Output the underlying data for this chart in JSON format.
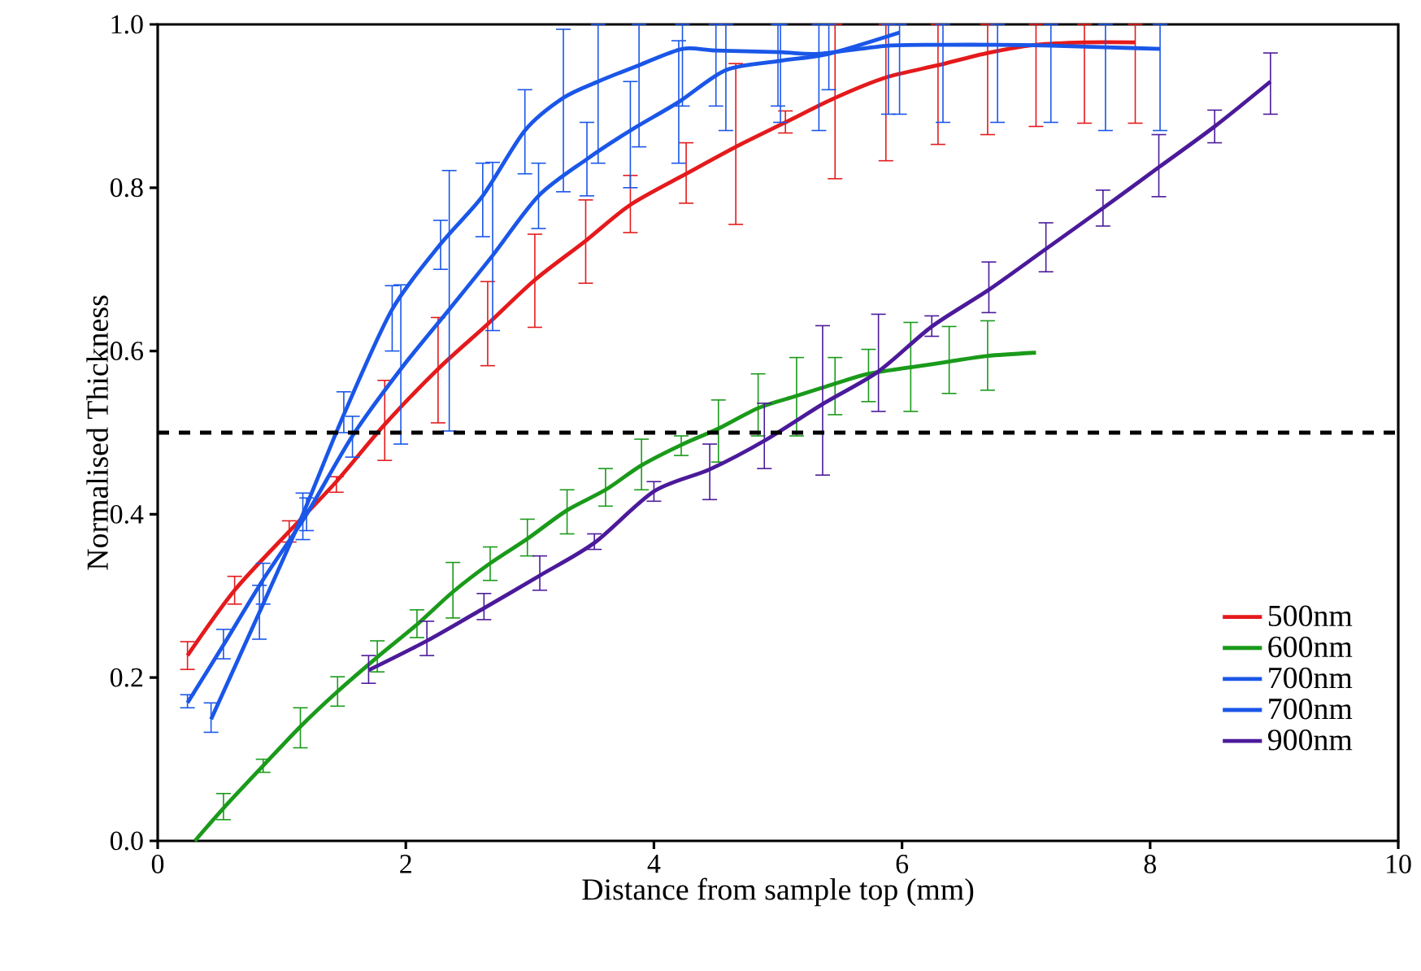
{
  "chart_data": {
    "type": "line",
    "xlabel": "Distance from sample top (mm)",
    "ylabel": "Normalised Thickness",
    "xlim": [
      0,
      10
    ],
    "ylim": [
      0,
      1
    ],
    "xticks": [
      0,
      2,
      4,
      6,
      8,
      10
    ],
    "yticks": [
      {
        "value": 0,
        "label": "0.0"
      },
      {
        "value": 0.2,
        "label": "0.2"
      },
      {
        "value": 0.4,
        "label": "0.4"
      },
      {
        "value": 0.6,
        "label": "0.6"
      },
      {
        "value": 0.8,
        "label": "0.8"
      },
      {
        "value": 1,
        "label": "1.0"
      }
    ],
    "legend": "bottom right",
    "marker": "none",
    "line_style": "solid",
    "ref_lines": [
      {
        "axis": "y",
        "value": 0.5,
        "color": "#000000",
        "line_style": "dashed"
      }
    ],
    "series": [
      {
        "name": "500nm",
        "color": "#e41a1c",
        "x": [
          0.24,
          0.62,
          1.06,
          1.44,
          1.83,
          2.26,
          2.66,
          3.04,
          3.45,
          3.81,
          4.26,
          4.66,
          5.06,
          5.46,
          5.87,
          6.29,
          6.69,
          7.08,
          7.47,
          7.88
        ],
        "values": [
          0.227,
          0.307,
          0.379,
          0.44,
          0.51,
          0.578,
          0.633,
          0.687,
          0.735,
          0.779,
          0.817,
          0.85,
          0.88,
          0.91,
          0.935,
          0.95,
          0.965,
          0.975,
          0.978,
          0.978
        ],
        "errors": [
          [
            0.21,
            0.244
          ],
          [
            0.29,
            0.324
          ],
          [
            0.366,
            0.392
          ],
          [
            0.427,
            0.446
          ],
          [
            0.466,
            0.564
          ],
          [
            0.512,
            0.641
          ],
          [
            0.582,
            0.685
          ],
          [
            0.629,
            0.743
          ],
          [
            0.683,
            0.785
          ],
          [
            0.745,
            0.815
          ],
          [
            0.781,
            0.855
          ],
          [
            0.755,
            0.952
          ],
          [
            0.867,
            0.894
          ],
          [
            0.811,
            1.0
          ],
          [
            0.833,
            1.0
          ],
          [
            0.853,
            1.0
          ],
          [
            0.865,
            1.0
          ],
          [
            0.875,
            1.0
          ],
          [
            0.879,
            1.0
          ],
          [
            0.879,
            1.0
          ]
        ]
      },
      {
        "name": "600nm",
        "color": "#1a9a1a",
        "x": [
          0.3,
          0.53,
          0.85,
          1.15,
          1.45,
          1.77,
          2.09,
          2.38,
          2.68,
          2.98,
          3.3,
          3.61,
          3.9,
          4.22,
          4.52,
          4.84,
          5.15,
          5.46,
          5.73,
          6.07,
          6.38,
          6.69,
          7.08
        ],
        "values": [
          0.0,
          0.04,
          0.092,
          0.14,
          0.183,
          0.225,
          0.265,
          0.305,
          0.34,
          0.37,
          0.405,
          0.43,
          0.46,
          0.485,
          0.505,
          0.53,
          0.545,
          0.56,
          0.572,
          0.58,
          0.587,
          0.594,
          0.598
        ],
        "errors": [
          null,
          [
            0.026,
            0.058
          ],
          [
            0.084,
            0.1
          ],
          [
            0.114,
            0.163
          ],
          [
            0.165,
            0.201
          ],
          [
            0.207,
            0.245
          ],
          [
            0.249,
            0.283
          ],
          [
            0.273,
            0.341
          ],
          [
            0.319,
            0.36
          ],
          [
            0.349,
            0.394
          ],
          [
            0.376,
            0.43
          ],
          [
            0.41,
            0.456
          ],
          [
            0.43,
            0.492
          ],
          [
            0.472,
            0.496
          ],
          [
            0.464,
            0.54
          ],
          [
            0.496,
            0.572
          ],
          [
            0.496,
            0.592
          ],
          [
            0.522,
            0.592
          ],
          [
            0.538,
            0.602
          ],
          [
            0.526,
            0.635
          ],
          [
            0.548,
            0.63
          ],
          [
            0.552,
            0.637
          ],
          null
        ]
      },
      {
        "name": "700nm",
        "color": "#1a56e8",
        "x": [
          0.24,
          0.53,
          0.85,
          1.2,
          1.57,
          1.96,
          2.35,
          2.7,
          3.07,
          3.46,
          3.81,
          4.2,
          4.58,
          5.0,
          5.41,
          5.98
        ],
        "values": [
          0.169,
          0.24,
          0.32,
          0.4,
          0.496,
          0.578,
          0.651,
          0.717,
          0.79,
          0.835,
          0.87,
          0.905,
          0.944,
          0.955,
          0.964,
          0.99
        ],
        "errors": [
          [
            0.163,
            0.179
          ],
          [
            0.223,
            0.259
          ],
          [
            0.29,
            0.34
          ],
          [
            0.38,
            0.42
          ],
          [
            0.47,
            0.52
          ],
          [
            0.486,
            0.681
          ],
          [
            0.502,
            0.821
          ],
          [
            0.625,
            0.831
          ],
          [
            0.75,
            0.83
          ],
          [
            0.79,
            0.88
          ],
          [
            0.8,
            0.93
          ],
          [
            0.83,
            0.98
          ],
          [
            0.87,
            1.0
          ],
          [
            0.9,
            1.0
          ],
          [
            0.92,
            1.0
          ],
          [
            0.89,
            1.0
          ]
        ]
      },
      {
        "name": "700nm",
        "color": "#1a56e8",
        "x": [
          0.43,
          0.82,
          1.17,
          1.5,
          1.89,
          2.28,
          2.62,
          2.96,
          3.27,
          3.55,
          3.88,
          4.23,
          4.5,
          5.02,
          5.33,
          5.89,
          6.33,
          6.77,
          7.2,
          7.64,
          8.08
        ],
        "values": [
          0.149,
          0.28,
          0.4,
          0.522,
          0.651,
          0.731,
          0.79,
          0.87,
          0.91,
          0.93,
          0.95,
          0.97,
          0.968,
          0.966,
          0.964,
          0.974,
          0.975,
          0.975,
          0.974,
          0.972,
          0.97
        ],
        "errors": [
          [
            0.133,
            0.169
          ],
          [
            0.247,
            0.313
          ],
          [
            0.369,
            0.426
          ],
          [
            0.5,
            0.55
          ],
          [
            0.6,
            0.68
          ],
          [
            0.7,
            0.76
          ],
          [
            0.74,
            0.83
          ],
          [
            0.817,
            0.92
          ],
          [
            0.795,
            0.994
          ],
          [
            0.83,
            1.0
          ],
          [
            0.85,
            1.0
          ],
          [
            0.9,
            1.0
          ],
          [
            0.9,
            1.0
          ],
          [
            0.88,
            1.0
          ],
          [
            0.87,
            1.0
          ],
          [
            0.89,
            1.0
          ],
          [
            0.88,
            1.0
          ],
          [
            0.88,
            1.0
          ],
          [
            0.88,
            1.0
          ],
          [
            0.87,
            1.0
          ],
          [
            0.87,
            1.0
          ]
        ]
      },
      {
        "name": "900nm",
        "color": "#4b1a9a",
        "x": [
          1.7,
          2.17,
          2.63,
          3.08,
          3.52,
          4.0,
          4.45,
          4.89,
          5.36,
          5.81,
          6.24,
          6.7,
          7.16,
          7.62,
          8.07,
          8.52,
          8.97
        ],
        "values": [
          0.209,
          0.245,
          0.285,
          0.325,
          0.365,
          0.428,
          0.455,
          0.49,
          0.535,
          0.575,
          0.63,
          0.675,
          0.725,
          0.775,
          0.825,
          0.875,
          0.93
        ],
        "errors": [
          [
            0.193,
            0.227
          ],
          [
            0.227,
            0.269
          ],
          [
            0.271,
            0.303
          ],
          [
            0.307,
            0.349
          ],
          [
            0.357,
            0.376
          ],
          [
            0.416,
            0.44
          ],
          [
            0.418,
            0.486
          ],
          [
            0.456,
            0.536
          ],
          [
            0.448,
            0.631
          ],
          [
            0.526,
            0.645
          ],
          [
            0.618,
            0.643
          ],
          [
            0.647,
            0.709
          ],
          [
            0.697,
            0.757
          ],
          [
            0.753,
            0.797
          ],
          [
            0.789,
            0.865
          ],
          [
            0.855,
            0.895
          ],
          [
            0.89,
            0.965
          ]
        ]
      }
    ]
  }
}
